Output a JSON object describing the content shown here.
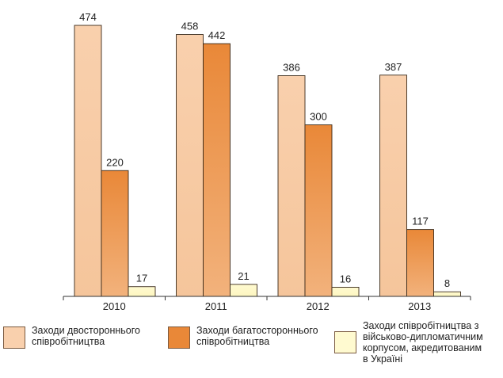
{
  "chart_data": {
    "type": "bar",
    "categories": [
      "2010",
      "2011",
      "2012",
      "2013"
    ],
    "series": [
      {
        "name": "Заходи двостороннього\nспівробітництва",
        "values": [
          474,
          458,
          386,
          387
        ],
        "color": "#f9d0ad",
        "color_dark": "#f5c59b"
      },
      {
        "name": "Заходи багатостороннього\nспівробітництва",
        "values": [
          220,
          442,
          300,
          117
        ],
        "color": "#e98838",
        "color_dark": "#f2b27c"
      },
      {
        "name": "Заходи співробітництва з\nвійськово-дипломатичним\nкорпусом, акредитованим\nв Україні",
        "values": [
          17,
          21,
          16,
          8
        ],
        "color": "#fffad0",
        "color_dark": "#fdf6c0"
      }
    ],
    "ylim": [
      0,
      500
    ],
    "grid": false,
    "legend_position": "bottom"
  }
}
